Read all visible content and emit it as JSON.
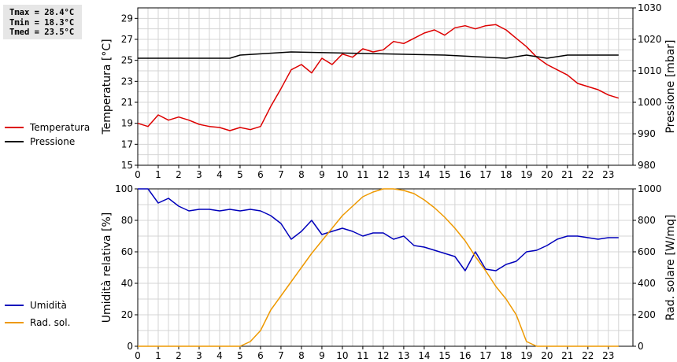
{
  "stats": [
    "Tmax = 28.4°C",
    "Tmin = 18.3°C",
    "Tmed = 23.5°C"
  ],
  "chart_data": [
    {
      "type": "line",
      "x_ticks": [
        0,
        1,
        2,
        3,
        4,
        5,
        6,
        7,
        8,
        9,
        10,
        11,
        12,
        13,
        14,
        15,
        16,
        17,
        18,
        19,
        20,
        21,
        22,
        23
      ],
      "xlim": [
        0,
        24.2
      ],
      "left_axis": {
        "label": "Temperatura [°C]",
        "ylim": [
          15,
          30
        ],
        "ticks": [
          15,
          17,
          19,
          21,
          23,
          25,
          27,
          29
        ]
      },
      "right_axis": {
        "label": "Pressione [mbar]",
        "ylim": [
          980,
          1030
        ],
        "ticks": [
          980,
          990,
          1000,
          1010,
          1020,
          1030
        ]
      },
      "grid": true,
      "legend_position": "left",
      "series": [
        {
          "name": "Temperatura",
          "axis": "left",
          "color": "#dd0000",
          "x": [
            0,
            0.5,
            1,
            1.5,
            2,
            2.5,
            3,
            3.5,
            4,
            4.5,
            5,
            5.5,
            6,
            6.5,
            7,
            7.5,
            8,
            8.5,
            9,
            9.5,
            10,
            10.5,
            11,
            11.5,
            12,
            12.5,
            13,
            13.5,
            14,
            14.5,
            15,
            15.5,
            16,
            16.5,
            17,
            17.5,
            18,
            18.5,
            19,
            19.5,
            20,
            20.5,
            21,
            21.5,
            22,
            22.5,
            23,
            23.5
          ],
          "y": [
            19.0,
            18.7,
            19.8,
            19.3,
            19.6,
            19.3,
            18.9,
            18.7,
            18.6,
            18.3,
            18.6,
            18.4,
            18.7,
            20.6,
            22.3,
            24.1,
            24.6,
            23.8,
            25.2,
            24.6,
            25.6,
            25.3,
            26.1,
            25.8,
            26.0,
            26.8,
            26.6,
            27.1,
            27.6,
            27.9,
            27.4,
            28.1,
            28.3,
            28.0,
            28.3,
            28.4,
            27.9,
            27.1,
            26.3,
            25.3,
            24.6,
            24.1,
            23.6,
            22.8,
            22.5,
            22.2,
            21.7,
            21.4
          ]
        },
        {
          "name": "Pressione",
          "axis": "right",
          "color": "#000000",
          "x": [
            0,
            4.5,
            5,
            7.5,
            15,
            18,
            19,
            20,
            21,
            23.5
          ],
          "y": [
            1014,
            1014,
            1015,
            1016,
            1015,
            1014,
            1015,
            1014,
            1015,
            1015
          ]
        }
      ]
    },
    {
      "type": "line",
      "x_ticks": [
        0,
        1,
        2,
        3,
        4,
        5,
        6,
        7,
        8,
        9,
        10,
        11,
        12,
        13,
        14,
        15,
        16,
        17,
        18,
        19,
        20,
        21,
        22,
        23
      ],
      "xlim": [
        0,
        24.2
      ],
      "left_axis": {
        "label": "Umidità relativa [%]",
        "ylim": [
          0,
          100
        ],
        "ticks": [
          0,
          20,
          40,
          60,
          80,
          100
        ]
      },
      "right_axis": {
        "label": "Rad. solare [W/mq]",
        "ylim": [
          0,
          1000
        ],
        "ticks": [
          0,
          200,
          400,
          600,
          800,
          1000
        ]
      },
      "grid": true,
      "legend_position": "left",
      "series": [
        {
          "name": "Umidità",
          "axis": "left",
          "color": "#0000bb",
          "x": [
            0,
            0.5,
            1,
            1.5,
            2,
            2.5,
            3,
            3.5,
            4,
            4.5,
            5,
            5.5,
            6,
            6.5,
            7,
            7.5,
            8,
            8.5,
            9,
            9.5,
            10,
            10.5,
            11,
            11.5,
            12,
            12.5,
            13,
            13.5,
            14,
            14.5,
            15,
            15.5,
            16,
            16.5,
            17,
            17.5,
            18,
            18.5,
            19,
            19.5,
            20,
            20.5,
            21,
            21.5,
            22,
            22.5,
            23,
            23.5
          ],
          "y": [
            100,
            100,
            91,
            94,
            89,
            86,
            87,
            87,
            86,
            87,
            86,
            87,
            86,
            83,
            78,
            68,
            73,
            80,
            71,
            73,
            75,
            73,
            70,
            72,
            72,
            68,
            70,
            64,
            63,
            61,
            59,
            57,
            48,
            60,
            49,
            48,
            52,
            54,
            60,
            61,
            64,
            68,
            70,
            70,
            69,
            68,
            69,
            69
          ]
        },
        {
          "name": "Rad. sol.",
          "axis": "right",
          "color": "#ee9900",
          "x": [
            0,
            0.5,
            1,
            1.5,
            2,
            2.5,
            3,
            3.5,
            4,
            4.5,
            5,
            5.5,
            6,
            6.5,
            7,
            7.5,
            8,
            8.5,
            9,
            9.5,
            10,
            10.5,
            11,
            11.5,
            12,
            12.5,
            13,
            13.5,
            14,
            14.5,
            15,
            15.5,
            16,
            16.5,
            17,
            17.5,
            18,
            18.5,
            19,
            19.5,
            20,
            20.5,
            21,
            21.5,
            22,
            22.5,
            23,
            23.5
          ],
          "y": [
            0,
            0,
            0,
            0,
            0,
            0,
            0,
            0,
            0,
            0,
            0,
            30,
            100,
            230,
            320,
            410,
            500,
            590,
            670,
            750,
            830,
            890,
            950,
            980,
            1000,
            1000,
            990,
            970,
            930,
            880,
            820,
            750,
            670,
            570,
            480,
            380,
            300,
            200,
            30,
            0,
            0,
            0,
            0,
            0,
            0,
            0,
            0,
            0
          ]
        }
      ]
    }
  ]
}
